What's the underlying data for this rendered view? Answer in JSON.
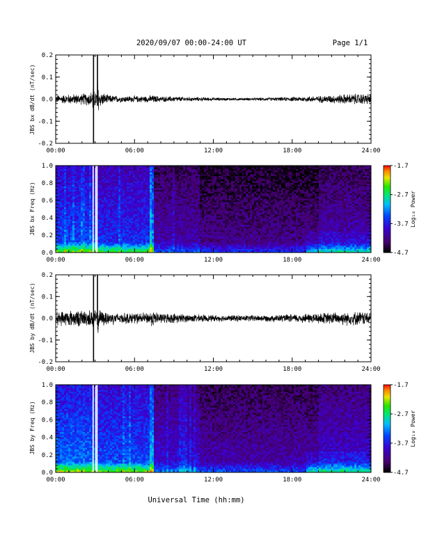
{
  "header": {
    "title": "2020/09/07  00:00-24:00 UT",
    "page": "Page 1/1"
  },
  "footer": {
    "xlabel": "Universal Time (hh:mm)"
  },
  "colorbar": {
    "ticks": [
      "-1.7",
      "-2.7",
      "-3.7",
      "-4.7"
    ],
    "label": "Log₁₀ Power",
    "range": [
      -4.7,
      -1.7
    ]
  },
  "chart_data": [
    {
      "type": "line",
      "ylabel": "JBS bx dB/dt (nT/sec)",
      "xlim": [
        0,
        24
      ],
      "ylim": [
        -0.2,
        0.2
      ],
      "x_ticks": [
        "00:00",
        "06:00",
        "12:00",
        "18:00",
        "24:00"
      ],
      "y_ticks": [
        "0.2",
        "0.1",
        "0.0",
        "-0.1",
        "-0.2"
      ],
      "series": [
        {
          "x": [
            0,
            1,
            2,
            2.5,
            2.8,
            3.0,
            3.3,
            4,
            5,
            6,
            7,
            7.3,
            8,
            9,
            10,
            11,
            12,
            13,
            14,
            15,
            16,
            17,
            18,
            19,
            20,
            21,
            22,
            23,
            24
          ],
          "amplitude": [
            0.015,
            0.018,
            0.02,
            0.025,
            0.03,
            0.2,
            0.03,
            0.015,
            0.012,
            0.012,
            0.012,
            0.015,
            0.01,
            0.01,
            0.008,
            0.007,
            0.006,
            0.005,
            0.005,
            0.005,
            0.006,
            0.007,
            0.008,
            0.01,
            0.012,
            0.015,
            0.018,
            0.02,
            0.02
          ]
        }
      ],
      "spikes": [
        {
          "x": 2.88,
          "ymin": -0.2,
          "ymax": 0.2
        },
        {
          "x": 3.18,
          "ymin": -0.03,
          "ymax": 0.2
        }
      ]
    },
    {
      "type": "heatmap",
      "ylabel": "JBS bx Freq (Hz)",
      "xlim": [
        0,
        24
      ],
      "ylim": [
        0.0,
        1.0
      ],
      "x_ticks": [
        "00:00",
        "06:00",
        "12:00",
        "18:00",
        "24:00"
      ],
      "y_ticks": [
        "1.0",
        "0.8",
        "0.6",
        "0.4",
        "0.2",
        "0.0"
      ],
      "zlim": [
        -4.7,
        -1.7
      ],
      "white_gaps": [
        2.85,
        3.05,
        3.15
      ]
    },
    {
      "type": "line",
      "ylabel": "JBS by dB/dt (nT/sec)",
      "xlim": [
        0,
        24
      ],
      "ylim": [
        -0.2,
        0.2
      ],
      "x_ticks": [
        "00:00",
        "06:00",
        "12:00",
        "18:00",
        "24:00"
      ],
      "y_ticks": [
        "0.2",
        "0.1",
        "0.0",
        "-0.1",
        "-0.2"
      ],
      "series": [
        {
          "x": [
            0,
            1,
            2,
            2.5,
            2.8,
            3.0,
            3.3,
            4,
            5,
            6,
            7,
            7.3,
            8,
            9,
            10,
            11,
            12,
            13,
            14,
            15,
            16,
            17,
            18,
            19,
            20,
            21,
            22,
            23,
            24
          ],
          "amplitude": [
            0.025,
            0.03,
            0.03,
            0.03,
            0.035,
            0.2,
            0.03,
            0.025,
            0.02,
            0.02,
            0.02,
            0.03,
            0.018,
            0.018,
            0.015,
            0.014,
            0.012,
            0.012,
            0.012,
            0.012,
            0.012,
            0.013,
            0.015,
            0.018,
            0.02,
            0.022,
            0.025,
            0.025,
            0.025
          ]
        }
      ],
      "spikes": [
        {
          "x": 2.88,
          "ymin": -0.2,
          "ymax": 0.2
        },
        {
          "x": 3.18,
          "ymin": -0.03,
          "ymax": 0.2
        }
      ]
    },
    {
      "type": "heatmap",
      "ylabel": "JBS by Freq (Hz)",
      "xlim": [
        0,
        24
      ],
      "ylim": [
        0.0,
        1.0
      ],
      "x_ticks": [
        "00:00",
        "06:00",
        "12:00",
        "18:00",
        "24:00"
      ],
      "y_ticks": [
        "1.0",
        "0.8",
        "0.6",
        "0.4",
        "0.2",
        "0.0"
      ],
      "zlim": [
        -4.7,
        -1.7
      ],
      "white_gaps": [
        2.85,
        3.05,
        3.15
      ]
    }
  ]
}
